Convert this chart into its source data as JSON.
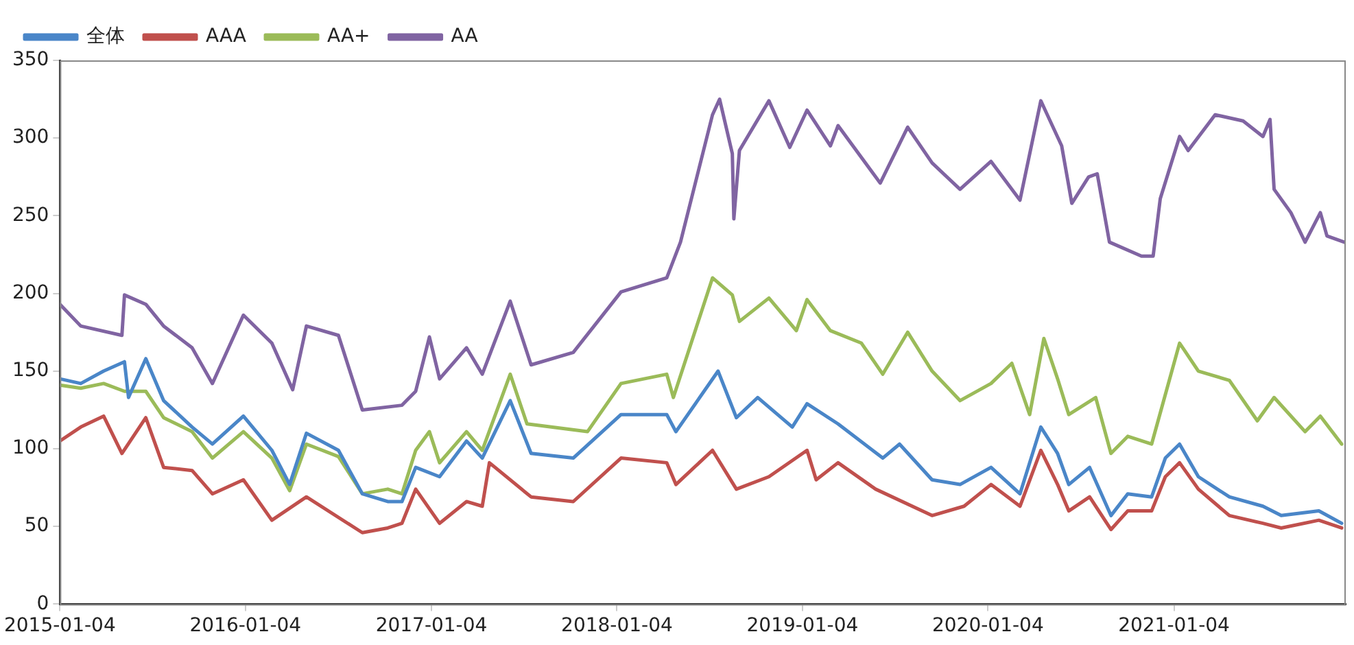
{
  "chart_data": {
    "type": "line",
    "xlim": [
      "2015-01-04",
      "2021-12-08"
    ],
    "xticks": [
      "2015-01-04",
      "2016-01-04",
      "2017-01-04",
      "2018-01-04",
      "2019-01-04",
      "2020-01-04",
      "2021-01-04"
    ],
    "ylim": [
      0,
      350
    ],
    "yticks": [
      0,
      50,
      100,
      150,
      200,
      250,
      300,
      350
    ],
    "grid": false,
    "legend": "top left",
    "marker": "none",
    "line_style": "solid",
    "series": [
      {
        "name": "全体",
        "color": "#4a86c8",
        "x": [
          "2015-01-04",
          "2015-02-14",
          "2015-03-31",
          "2015-05-11",
          "2015-05-19",
          "2015-06-22",
          "2015-07-27",
          "2015-09-21",
          "2015-10-31",
          "2015-12-31",
          "2016-02-25",
          "2016-03-31",
          "2016-05-03",
          "2016-07-05",
          "2016-08-21",
          "2016-10-10",
          "2016-11-07",
          "2016-12-04",
          "2017-01-20",
          "2017-03-14",
          "2017-04-14",
          "2017-06-08",
          "2017-07-19",
          "2017-10-10",
          "2018-01-12",
          "2018-04-12",
          "2018-04-30",
          "2018-07-22",
          "2018-08-27",
          "2018-10-08",
          "2018-12-15",
          "2019-01-13",
          "2019-03-15",
          "2019-06-11",
          "2019-07-14",
          "2019-09-16",
          "2019-11-10",
          "2020-01-10",
          "2020-03-07",
          "2020-04-17",
          "2020-05-20",
          "2020-06-11",
          "2020-07-22",
          "2020-09-02",
          "2020-10-05",
          "2020-11-21",
          "2020-12-18",
          "2021-01-15",
          "2021-02-21",
          "2021-04-23",
          "2021-06-28",
          "2021-08-03",
          "2021-10-16",
          "2021-11-30"
        ],
        "values": [
          145,
          142,
          150,
          156,
          133,
          158,
          131,
          114,
          103,
          121,
          99,
          77,
          110,
          99,
          71,
          66,
          66,
          88,
          82,
          105,
          94,
          131,
          97,
          94,
          122,
          122,
          111,
          150,
          120,
          133,
          114,
          129,
          116,
          94,
          103,
          80,
          77,
          88,
          71,
          114,
          97,
          77,
          88,
          57,
          71,
          69,
          94,
          103,
          82,
          69,
          63,
          57,
          60,
          52
        ]
      },
      {
        "name": "AAA",
        "color": "#c0504d",
        "x": [
          "2015-01-04",
          "2015-02-14",
          "2015-03-31",
          "2015-05-06",
          "2015-06-22",
          "2015-07-27",
          "2015-09-21",
          "2015-10-31",
          "2015-12-31",
          "2016-02-25",
          "2016-05-03",
          "2016-08-21",
          "2016-10-10",
          "2016-11-07",
          "2016-12-04",
          "2017-01-20",
          "2017-03-14",
          "2017-04-14",
          "2017-04-28",
          "2017-07-19",
          "2017-10-10",
          "2018-01-12",
          "2018-04-12",
          "2018-04-30",
          "2018-07-11",
          "2018-08-27",
          "2018-10-30",
          "2019-01-13",
          "2019-01-31",
          "2019-03-15",
          "2019-05-28",
          "2019-09-16",
          "2019-11-18",
          "2020-01-10",
          "2020-03-07",
          "2020-04-17",
          "2020-05-20",
          "2020-06-11",
          "2020-07-22",
          "2020-09-02",
          "2020-10-05",
          "2020-11-21",
          "2020-12-18",
          "2021-01-15",
          "2021-02-21",
          "2021-04-23",
          "2021-06-28",
          "2021-08-03",
          "2021-10-16",
          "2021-11-30"
        ],
        "values": [
          105,
          114,
          121,
          97,
          120,
          88,
          86,
          71,
          80,
          54,
          69,
          46,
          49,
          52,
          74,
          52,
          66,
          63,
          91,
          69,
          66,
          94,
          91,
          77,
          99,
          74,
          82,
          99,
          80,
          91,
          74,
          57,
          63,
          77,
          63,
          99,
          77,
          60,
          69,
          48,
          60,
          60,
          82,
          91,
          74,
          57,
          52,
          49,
          54,
          49
        ]
      },
      {
        "name": "AA+",
        "color": "#9bbb59",
        "x": [
          "2015-01-04",
          "2015-02-14",
          "2015-03-31",
          "2015-05-11",
          "2015-06-22",
          "2015-07-27",
          "2015-09-21",
          "2015-10-31",
          "2015-12-31",
          "2016-02-25",
          "2016-03-31",
          "2016-05-03",
          "2016-07-05",
          "2016-08-21",
          "2016-10-10",
          "2016-11-07",
          "2016-12-04",
          "2016-12-31",
          "2017-01-20",
          "2017-03-14",
          "2017-04-14",
          "2017-06-08",
          "2017-07-11",
          "2017-11-07",
          "2018-01-12",
          "2018-04-12",
          "2018-04-25",
          "2018-07-11",
          "2018-08-19",
          "2018-09-02",
          "2018-10-30",
          "2018-12-23",
          "2019-01-13",
          "2019-02-28",
          "2019-04-30",
          "2019-06-11",
          "2019-07-30",
          "2019-09-16",
          "2019-11-10",
          "2020-01-10",
          "2020-02-20",
          "2020-03-26",
          "2020-04-23",
          "2020-05-20",
          "2020-06-11",
          "2020-08-03",
          "2020-09-02",
          "2020-10-05",
          "2020-11-21",
          "2021-01-15",
          "2021-02-21",
          "2021-04-23",
          "2021-06-17",
          "2021-07-20",
          "2021-09-19",
          "2021-10-19",
          "2021-11-30"
        ],
        "values": [
          141,
          139,
          142,
          137,
          137,
          120,
          111,
          94,
          111,
          94,
          73,
          103,
          95,
          71,
          74,
          71,
          99,
          111,
          91,
          111,
          99,
          148,
          116,
          111,
          142,
          148,
          133,
          210,
          199,
          182,
          197,
          176,
          196,
          176,
          168,
          148,
          175,
          150,
          131,
          142,
          155,
          122,
          171,
          145,
          122,
          133,
          97,
          108,
          103,
          168,
          150,
          144,
          118,
          133,
          111,
          121,
          103
        ]
      },
      {
        "name": "AA",
        "color": "#8064a2",
        "x": [
          "2015-01-04",
          "2015-02-14",
          "2015-05-06",
          "2015-05-11",
          "2015-06-22",
          "2015-07-27",
          "2015-09-21",
          "2015-10-31",
          "2015-12-31",
          "2016-02-25",
          "2016-04-06",
          "2016-05-03",
          "2016-07-05",
          "2016-08-21",
          "2016-11-07",
          "2016-12-04",
          "2016-12-31",
          "2017-01-20",
          "2017-03-14",
          "2017-04-14",
          "2017-06-08",
          "2017-07-19",
          "2017-10-10",
          "2018-01-12",
          "2018-04-12",
          "2018-05-09",
          "2018-07-11",
          "2018-07-25",
          "2018-08-19",
          "2018-08-22",
          "2018-09-02",
          "2018-10-30",
          "2018-12-10",
          "2019-01-13",
          "2019-02-28",
          "2019-03-15",
          "2019-06-06",
          "2019-07-30",
          "2019-09-16",
          "2019-11-10",
          "2020-01-10",
          "2020-03-07",
          "2020-04-17",
          "2020-05-28",
          "2020-06-17",
          "2020-07-20",
          "2020-08-06",
          "2020-08-30",
          "2020-11-01",
          "2020-11-24",
          "2020-12-08",
          "2021-01-15",
          "2021-02-01",
          "2021-03-26",
          "2021-05-20",
          "2021-06-28",
          "2021-07-12",
          "2021-07-20",
          "2021-08-22",
          "2021-09-19",
          "2021-10-19",
          "2021-11-01",
          "2021-12-05"
        ],
        "values": [
          193,
          179,
          173,
          199,
          193,
          179,
          165,
          142,
          186,
          168,
          138,
          179,
          173,
          125,
          128,
          137,
          172,
          145,
          165,
          148,
          195,
          154,
          162,
          201,
          210,
          233,
          315,
          325,
          290,
          248,
          292,
          324,
          294,
          318,
          295,
          308,
          271,
          307,
          284,
          267,
          285,
          260,
          324,
          295,
          258,
          275,
          277,
          233,
          224,
          224,
          261,
          301,
          292,
          315,
          311,
          301,
          312,
          267,
          252,
          233,
          252,
          237,
          233
        ]
      }
    ]
  }
}
